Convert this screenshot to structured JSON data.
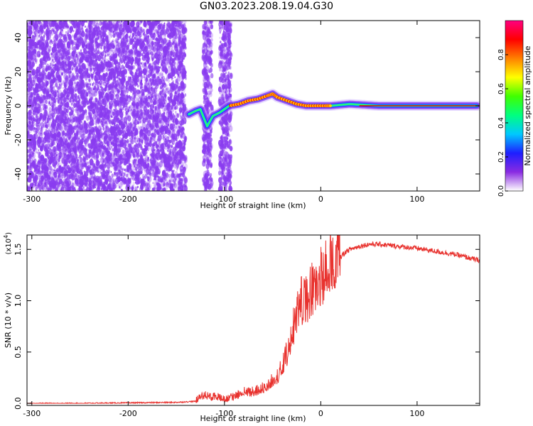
{
  "figure": {
    "title": "GN03.2023.208.19.04.G30"
  },
  "colors": {
    "signal_line": "#e8322e",
    "scatter_dots": "#8a3cf0",
    "axis": "#000000"
  },
  "chart_data": [
    {
      "type": "heatmap",
      "xlabel": "Height of straight line (km)",
      "ylabel": "Frequency (Hz)",
      "xlim": [
        -305,
        165
      ],
      "ylim": [
        -50,
        50
      ],
      "xticks": [
        -300,
        -200,
        -100,
        0,
        100
      ],
      "xtick_labels": [
        "-300",
        "-200",
        "-100",
        "0",
        "100"
      ],
      "yticks": [
        -40,
        -20,
        0,
        20,
        40
      ],
      "ytick_labels": [
        "-40",
        "-20",
        "0",
        "20",
        "40"
      ],
      "colorbar": {
        "label": "Normalized spectral amplitude",
        "range": [
          0,
          1
        ],
        "ticks": [
          0.0,
          0.2,
          0.4,
          0.6,
          0.8
        ],
        "tick_labels": [
          "0.0",
          "0.2",
          "0.4",
          "0.6",
          "0.8"
        ],
        "colormap": [
          "#ffffff",
          "#8a2be2",
          "#1e1eff",
          "#00c8ff",
          "#00ff80",
          "#40ff00",
          "#ffff00",
          "#ff8000",
          "#ff0000",
          "#ff0080"
        ]
      },
      "noise_regions_km": [
        [
          -305,
          -140
        ],
        [
          -122,
          -113
        ],
        [
          -105,
          -93
        ]
      ],
      "signal_track": {
        "x": [
          -137,
          -130,
          -125,
          -118,
          -112,
          -105,
          -95,
          -85,
          -75,
          -65,
          -55,
          -50,
          -45,
          -35,
          -25,
          -15,
          -5,
          5,
          10,
          30,
          60,
          100,
          165
        ],
        "freq": [
          -5,
          -3,
          -2,
          -12,
          -6,
          -4,
          0,
          1,
          3,
          4,
          6,
          7,
          5,
          3,
          1,
          0,
          0,
          0,
          0,
          1,
          0,
          0,
          0
        ]
      }
    },
    {
      "type": "line",
      "xlabel": "Height of straight line (km)",
      "ylabel": "SNR (10 * v/v)",
      "multiplier": "(x10",
      "multiplier_exponent": "4",
      "multiplier_close": ")",
      "xlim": [
        -305,
        165
      ],
      "ylim": [
        -0.02,
        1.64
      ],
      "xticks": [
        -300,
        -200,
        -100,
        0,
        100
      ],
      "xtick_labels": [
        "-300",
        "-200",
        "-100",
        "0",
        "100"
      ],
      "yticks": [
        0.0,
        0.5,
        1.0,
        1.5
      ],
      "ytick_labels": [
        "0.0",
        "0.5",
        "1.0",
        "1.5"
      ],
      "series": [
        {
          "x": [
            -305,
            -250,
            -200,
            -150,
            -130,
            -125,
            -120,
            -115,
            -110,
            -100,
            -90,
            -80,
            -70,
            -60,
            -50,
            -45,
            -40,
            -35,
            -30,
            -25,
            -20,
            -15,
            -10,
            -5,
            0,
            5,
            10,
            15,
            20,
            25,
            30,
            40,
            50,
            60,
            80,
            100,
            120,
            140,
            165
          ],
          "y": [
            0.0,
            0.0,
            0.005,
            0.01,
            0.02,
            0.05,
            0.08,
            0.05,
            0.07,
            0.03,
            0.06,
            0.1,
            0.1,
            0.14,
            0.2,
            0.25,
            0.33,
            0.45,
            0.65,
            0.8,
            0.95,
            0.95,
            1.05,
            1.1,
            1.15,
            1.22,
            1.3,
            1.35,
            1.42,
            1.47,
            1.5,
            1.53,
            1.55,
            1.55,
            1.53,
            1.51,
            1.48,
            1.45,
            1.39
          ],
          "peak": {
            "x": 10,
            "y": 1.64
          }
        }
      ]
    }
  ]
}
